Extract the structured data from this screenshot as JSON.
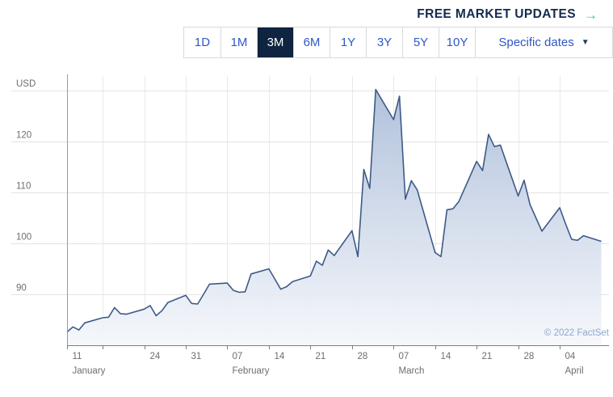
{
  "header": {
    "link_label": "FREE MARKET UPDATES",
    "arrow": "→",
    "text_color": "#142a4e",
    "accent_color": "#2cc5b4"
  },
  "range_selector": {
    "options": [
      {
        "label": "1D",
        "active": false
      },
      {
        "label": "1M",
        "active": false
      },
      {
        "label": "3M",
        "active": true
      },
      {
        "label": "6M",
        "active": false
      },
      {
        "label": "1Y",
        "active": false
      },
      {
        "label": "3Y",
        "active": false
      },
      {
        "label": "5Y",
        "active": false
      },
      {
        "label": "10Y",
        "active": false
      }
    ],
    "specific_dates_label": "Specific dates",
    "dropdown_arrow": "▼",
    "button_text_color": "#2e58c6",
    "active_bg": "#0e2440",
    "active_text_color": "#ffffff",
    "caret_color": "#1d3c69"
  },
  "chart_data": {
    "type": "area",
    "title": "",
    "ylabel": "USD",
    "xlabel": "",
    "ylim": [
      80,
      132.5
    ],
    "yticks": [
      {
        "value": 90,
        "label": "90"
      },
      {
        "value": 100,
        "label": "100"
      },
      {
        "value": 110,
        "label": "110"
      },
      {
        "value": 120,
        "label": "120"
      },
      {
        "value": 130,
        "label": ""
      }
    ],
    "x_axis_ticks": [
      {
        "date": "2022-01-11",
        "label": "11",
        "month": "January"
      },
      {
        "date": "2022-01-17",
        "label": "",
        "month": ""
      },
      {
        "date": "2022-01-24",
        "label": "24",
        "month": ""
      },
      {
        "date": "2022-01-31",
        "label": "31",
        "month": ""
      },
      {
        "date": "2022-02-07",
        "label": "07",
        "month": "February"
      },
      {
        "date": "2022-02-14",
        "label": "14",
        "month": ""
      },
      {
        "date": "2022-02-21",
        "label": "21",
        "month": ""
      },
      {
        "date": "2022-02-28",
        "label": "28",
        "month": ""
      },
      {
        "date": "2022-03-07",
        "label": "07",
        "month": "March"
      },
      {
        "date": "2022-03-14",
        "label": "14",
        "month": ""
      },
      {
        "date": "2022-03-21",
        "label": "21",
        "month": ""
      },
      {
        "date": "2022-03-28",
        "label": "28",
        "month": ""
      },
      {
        "date": "2022-04-04",
        "label": "04",
        "month": "April"
      }
    ],
    "x_dates": [
      "2022-01-11",
      "2022-01-12",
      "2022-01-13",
      "2022-01-14",
      "2022-01-17",
      "2022-01-18",
      "2022-01-19",
      "2022-01-20",
      "2022-01-21",
      "2022-01-24",
      "2022-01-25",
      "2022-01-26",
      "2022-01-27",
      "2022-01-28",
      "2022-01-31",
      "2022-02-01",
      "2022-02-02",
      "2022-02-03",
      "2022-02-04",
      "2022-02-07",
      "2022-02-08",
      "2022-02-09",
      "2022-02-10",
      "2022-02-11",
      "2022-02-14",
      "2022-02-15",
      "2022-02-16",
      "2022-02-17",
      "2022-02-18",
      "2022-02-21",
      "2022-02-22",
      "2022-02-23",
      "2022-02-24",
      "2022-02-25",
      "2022-02-28",
      "2022-03-01",
      "2022-03-02",
      "2022-03-03",
      "2022-03-04",
      "2022-03-07",
      "2022-03-08",
      "2022-03-09",
      "2022-03-10",
      "2022-03-11",
      "2022-03-14",
      "2022-03-15",
      "2022-03-16",
      "2022-03-17",
      "2022-03-18",
      "2022-03-21",
      "2022-03-22",
      "2022-03-23",
      "2022-03-24",
      "2022-03-25",
      "2022-03-28",
      "2022-03-29",
      "2022-03-30",
      "2022-03-31",
      "2022-04-01",
      "2022-04-04",
      "2022-04-05",
      "2022-04-06",
      "2022-04-07",
      "2022-04-08",
      "2022-04-11"
    ],
    "values": [
      82.6,
      83.6,
      83.0,
      84.4,
      85.4,
      85.5,
      87.4,
      86.2,
      86.1,
      87.1,
      87.8,
      85.8,
      86.8,
      88.4,
      89.8,
      88.2,
      88.1,
      90.0,
      92.0,
      92.2,
      90.8,
      90.4,
      90.5,
      94.0,
      95.0,
      93.0,
      91.0,
      91.5,
      92.5,
      93.6,
      96.5,
      95.7,
      98.7,
      97.6,
      102.5,
      97.4,
      114.5,
      110.8,
      130.2,
      124.3,
      128.9,
      108.7,
      112.3,
      110.5,
      98.2,
      97.4,
      106.6,
      106.8,
      108.2,
      116.1,
      114.3,
      121.4,
      119.0,
      119.3,
      109.3,
      112.4,
      107.6,
      105.0,
      102.4,
      107.0,
      103.8,
      100.8,
      100.6,
      101.5,
      100.4
    ],
    "line_color": "#3d5a87",
    "fill_top_color": "#aebfda",
    "fill_bottom_color": "#f5f7fb",
    "grid_color": "#e3e3e3",
    "vgrid_color": "#e9e9e9",
    "axis_color": "#7d7d7d",
    "yaxis_color": "#9a9a9a",
    "tick_label_color": "#6e6e6e",
    "legend_position": "none",
    "grid": true,
    "watermark": "© 2022 FactSet",
    "watermark_color": "#8da8cd"
  }
}
